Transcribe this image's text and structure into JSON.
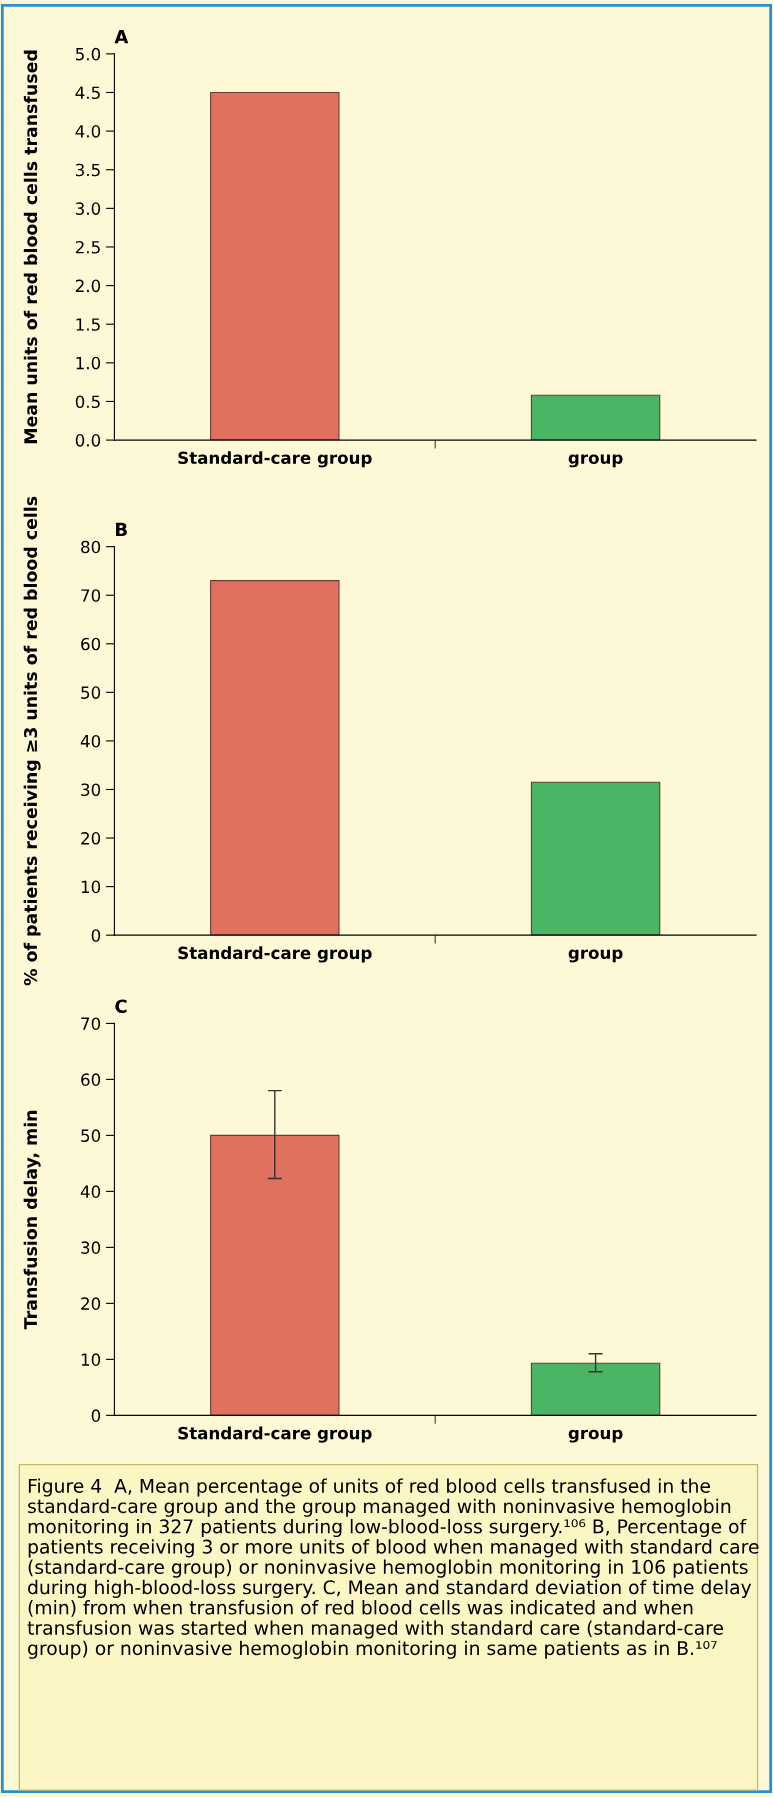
{
  "chart_data": [
    {
      "type": "bar",
      "title": "A",
      "ylabel": "Mean units of red blood cells transfused",
      "categories": [
        "Standard-care group",
        "group"
      ],
      "values": [
        4.5,
        0.58
      ],
      "colors": [
        "#e2705e",
        "#4bb566"
      ],
      "ylim": [
        0,
        5
      ],
      "yticks": [
        {
          "value": 0,
          "label": "0.0"
        },
        {
          "value": 0.5,
          "label": "0.5"
        },
        {
          "value": 1,
          "label": "1.0"
        },
        {
          "value": 1.5,
          "label": "1.5"
        },
        {
          "value": 2,
          "label": "2.0"
        },
        {
          "value": 2.5,
          "label": "2.5"
        },
        {
          "value": 3,
          "label": "3.0"
        },
        {
          "value": 3.5,
          "label": "3.5"
        },
        {
          "value": 4,
          "label": "4.0"
        },
        {
          "value": 4.5,
          "label": "4.5"
        },
        {
          "value": 5,
          "label": "5.0"
        }
      ]
    },
    {
      "type": "bar",
      "title": "B",
      "ylabel": "% of patients receiving ≥3 units of red blood cells",
      "categories": [
        "Standard-care group",
        "group"
      ],
      "values": [
        73,
        31.5
      ],
      "colors": [
        "#e2705e",
        "#4bb566"
      ],
      "ylim": [
        0,
        80
      ],
      "yticks": [
        0,
        10,
        20,
        30,
        40,
        50,
        60,
        70,
        80
      ]
    },
    {
      "type": "bar",
      "title": "C",
      "ylabel": "Transfusion delay, min",
      "categories": [
        "Standard-care group",
        "group"
      ],
      "values": [
        50,
        9.3
      ],
      "errors": [
        [
          42.3,
          58
        ],
        [
          7.8,
          11
        ]
      ],
      "colors": [
        "#e2705e",
        "#4bb566"
      ],
      "ylim": [
        0,
        70
      ],
      "yticks": [
        0,
        10,
        20,
        30,
        40,
        50,
        60,
        70
      ],
      "annotations": [
        "Figure 4  A, Mean percentage of units of red blood cells transfused in the standard-care group and the group managed with noninvasive hemoglobin monitoring in 327 patients during low-blood-loss surgery.¹⁰⁶ B, Percentage of patients receiving 3 or more units of blood when managed with standard care (standard-care group) or noninvasive hemoglobin monitoring in 106 patients during high-blood-loss surgery. C, Mean and standard deviation of time delay (min) from when transfusion of red blood cells was indicated and when transfusion was started when managed with standard care (standard-care group) or noninvasive hemoglobin monitoring in same patients as in B.¹⁰⁷"
      ]
    }
  ]
}
